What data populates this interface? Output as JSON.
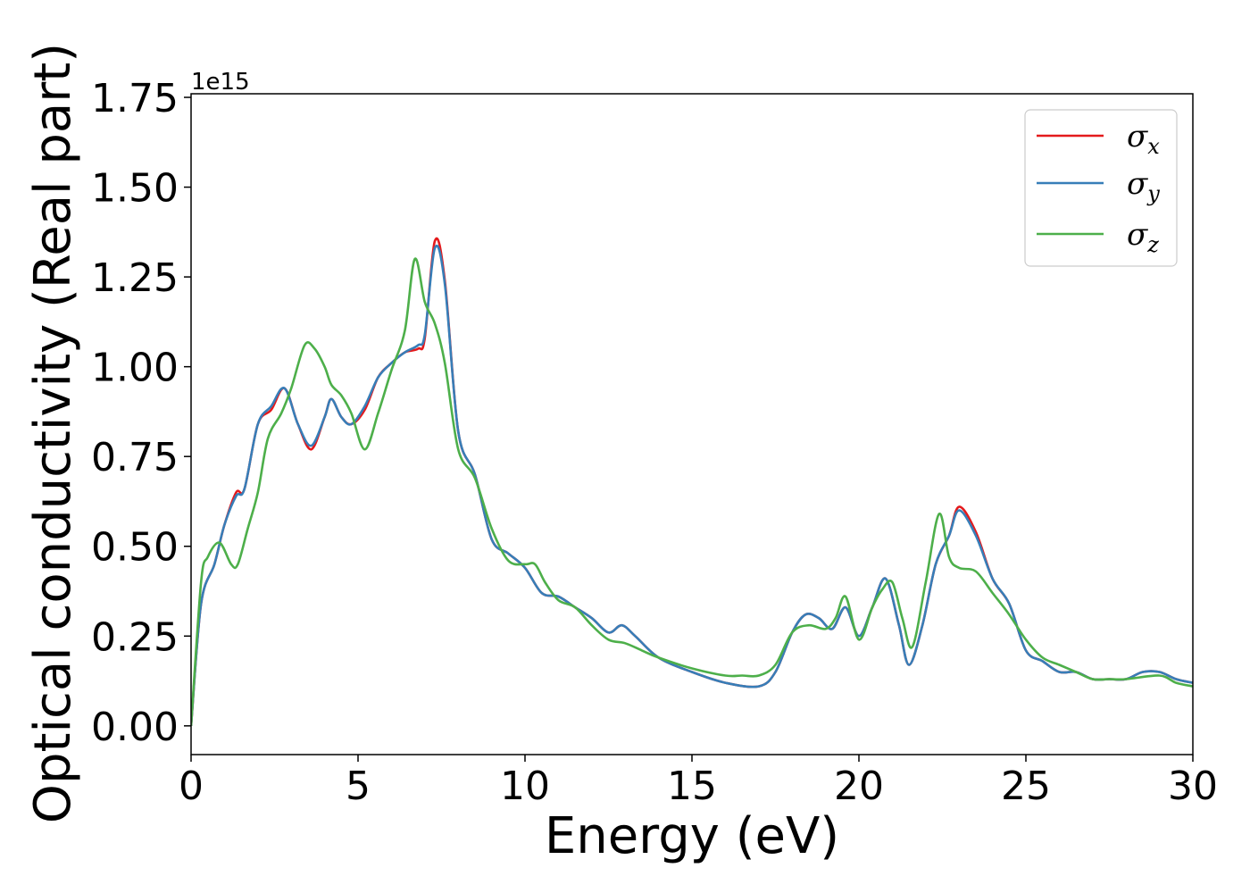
{
  "chart_data": {
    "type": "line",
    "xlabel": "Energy (eV)",
    "ylabel": "Optical conductivity (Real part)",
    "y_offset_label": "1e15",
    "xlim": [
      0,
      30
    ],
    "ylim": [
      -0.08,
      1.76
    ],
    "xticks": [
      0,
      5,
      10,
      15,
      20,
      25,
      30
    ],
    "yticks": [
      0.0,
      0.25,
      0.5,
      0.75,
      1.0,
      1.25,
      1.5,
      1.75
    ],
    "ytick_labels": [
      "0.00",
      "0.25",
      "0.50",
      "0.75",
      "1.00",
      "1.25",
      "1.50",
      "1.75"
    ],
    "grid": false,
    "legend_position": "top-right",
    "series": [
      {
        "name": "σx",
        "symbol": "σ",
        "subscript": "x",
        "color": "#e41a1c",
        "x": [
          0,
          0.3,
          0.7,
          1.0,
          1.35,
          1.6,
          2.0,
          2.4,
          2.8,
          3.2,
          3.6,
          4.0,
          4.2,
          4.5,
          4.8,
          5.2,
          5.6,
          6.0,
          6.4,
          6.8,
          7.0,
          7.3,
          7.6,
          8.0,
          8.5,
          9.0,
          9.5,
          10.0,
          10.5,
          11.0,
          11.5,
          12.0,
          12.5,
          12.9,
          13.3,
          14.0,
          15.0,
          16.0,
          17.0,
          17.5,
          18.0,
          18.4,
          18.8,
          19.2,
          19.6,
          20.0,
          20.4,
          20.8,
          21.2,
          21.5,
          21.9,
          22.3,
          22.7,
          23.0,
          23.5,
          24.0,
          24.5,
          25.0,
          25.5,
          26.0,
          26.5,
          27.0,
          27.5,
          28.0,
          28.5,
          29.0,
          29.5,
          30.0
        ],
        "y": [
          0,
          0.34,
          0.45,
          0.56,
          0.65,
          0.66,
          0.84,
          0.88,
          0.94,
          0.84,
          0.77,
          0.86,
          0.91,
          0.86,
          0.84,
          0.88,
          0.97,
          1.01,
          1.04,
          1.05,
          1.08,
          1.35,
          1.24,
          0.82,
          0.7,
          0.52,
          0.48,
          0.44,
          0.37,
          0.36,
          0.33,
          0.3,
          0.26,
          0.28,
          0.25,
          0.19,
          0.15,
          0.12,
          0.11,
          0.15,
          0.26,
          0.31,
          0.3,
          0.27,
          0.33,
          0.25,
          0.33,
          0.41,
          0.28,
          0.17,
          0.28,
          0.45,
          0.53,
          0.61,
          0.54,
          0.41,
          0.34,
          0.21,
          0.18,
          0.15,
          0.15,
          0.13,
          0.13,
          0.13,
          0.15,
          0.15,
          0.13,
          0.12
        ]
      },
      {
        "name": "σy",
        "symbol": "σ",
        "subscript": "y",
        "color": "#377eb8",
        "x": [
          0,
          0.3,
          0.7,
          1.0,
          1.35,
          1.6,
          2.0,
          2.4,
          2.8,
          3.2,
          3.6,
          4.0,
          4.2,
          4.5,
          4.8,
          5.2,
          5.6,
          6.0,
          6.4,
          6.8,
          7.0,
          7.3,
          7.6,
          8.0,
          8.5,
          9.0,
          9.5,
          10.0,
          10.5,
          11.0,
          11.5,
          12.0,
          12.5,
          12.9,
          13.3,
          14.0,
          15.0,
          16.0,
          17.0,
          17.5,
          18.0,
          18.4,
          18.8,
          19.2,
          19.6,
          20.0,
          20.4,
          20.8,
          21.2,
          21.5,
          21.9,
          22.3,
          22.7,
          23.0,
          23.5,
          24.0,
          24.5,
          25.0,
          25.5,
          26.0,
          26.5,
          27.0,
          27.5,
          28.0,
          28.5,
          29.0,
          29.5,
          30.0
        ],
        "y": [
          0,
          0.34,
          0.45,
          0.56,
          0.64,
          0.66,
          0.84,
          0.89,
          0.94,
          0.84,
          0.78,
          0.86,
          0.91,
          0.86,
          0.84,
          0.89,
          0.97,
          1.01,
          1.04,
          1.06,
          1.09,
          1.33,
          1.23,
          0.82,
          0.7,
          0.52,
          0.48,
          0.44,
          0.37,
          0.36,
          0.33,
          0.3,
          0.26,
          0.28,
          0.25,
          0.19,
          0.15,
          0.12,
          0.11,
          0.15,
          0.26,
          0.31,
          0.3,
          0.27,
          0.33,
          0.25,
          0.33,
          0.41,
          0.28,
          0.17,
          0.28,
          0.45,
          0.53,
          0.6,
          0.53,
          0.41,
          0.34,
          0.21,
          0.18,
          0.15,
          0.15,
          0.13,
          0.13,
          0.13,
          0.15,
          0.15,
          0.13,
          0.12
        ]
      },
      {
        "name": "σz",
        "symbol": "σ",
        "subscript": "z",
        "color": "#4daf4a",
        "x": [
          0,
          0.3,
          0.5,
          0.85,
          1.2,
          1.4,
          1.7,
          2.0,
          2.3,
          2.7,
          3.0,
          3.4,
          3.7,
          4.0,
          4.2,
          4.5,
          4.8,
          5.2,
          5.6,
          6.0,
          6.4,
          6.7,
          7.0,
          7.3,
          7.6,
          8.0,
          8.5,
          9.0,
          9.5,
          10.0,
          10.3,
          10.6,
          11.0,
          11.5,
          12.0,
          12.5,
          13.0,
          13.5,
          14.0,
          15.0,
          16.0,
          16.5,
          17.0,
          17.5,
          18.0,
          18.5,
          19.0,
          19.3,
          19.6,
          20.0,
          20.4,
          20.7,
          21.0,
          21.3,
          21.6,
          22.0,
          22.4,
          22.7,
          23.0,
          23.5,
          24.0,
          24.5,
          25.0,
          25.5,
          26.0,
          26.5,
          27.0,
          27.5,
          28.0,
          29.0,
          29.5,
          30.0
        ],
        "y": [
          0,
          0.4,
          0.47,
          0.51,
          0.45,
          0.45,
          0.55,
          0.65,
          0.8,
          0.87,
          0.94,
          1.06,
          1.05,
          1.0,
          0.95,
          0.92,
          0.87,
          0.77,
          0.87,
          0.99,
          1.1,
          1.3,
          1.18,
          1.12,
          1.01,
          0.77,
          0.69,
          0.55,
          0.46,
          0.45,
          0.45,
          0.4,
          0.35,
          0.33,
          0.28,
          0.24,
          0.23,
          0.21,
          0.19,
          0.16,
          0.14,
          0.14,
          0.14,
          0.17,
          0.26,
          0.28,
          0.27,
          0.3,
          0.36,
          0.24,
          0.33,
          0.38,
          0.4,
          0.3,
          0.22,
          0.4,
          0.59,
          0.47,
          0.44,
          0.43,
          0.37,
          0.31,
          0.24,
          0.19,
          0.17,
          0.15,
          0.13,
          0.13,
          0.13,
          0.14,
          0.12,
          0.11
        ]
      }
    ]
  }
}
